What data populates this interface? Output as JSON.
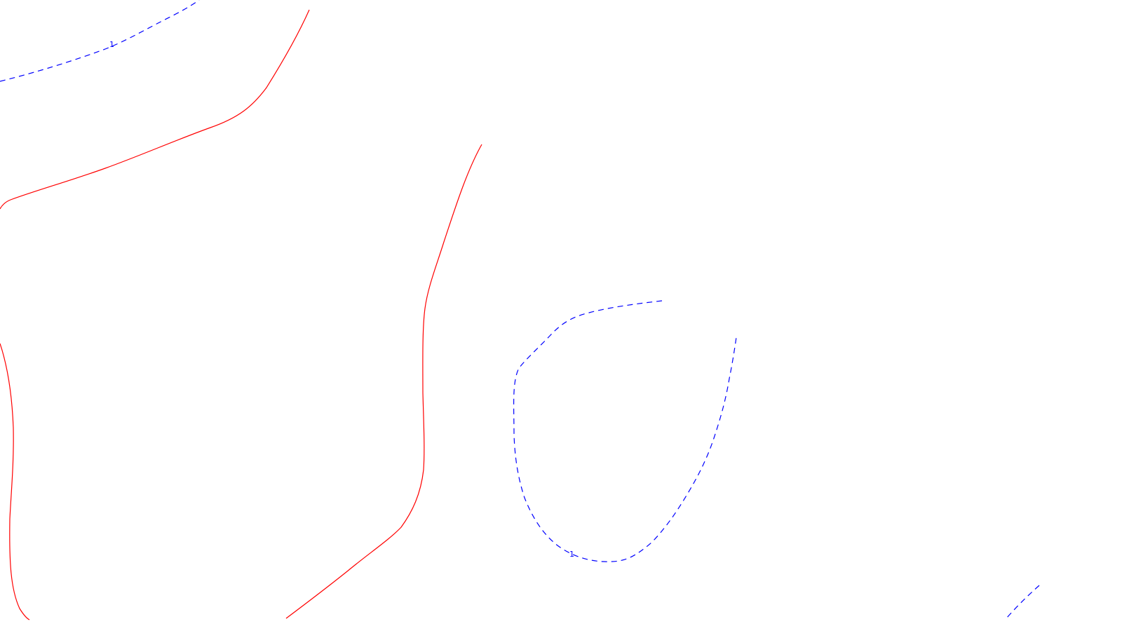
{
  "map": {
    "colors": {
      "background": "#ffffff",
      "solid_contour": "#ff0000",
      "dashed_contour": "#0000ff"
    },
    "contours": [
      {
        "id": "red-upper",
        "style": "solid",
        "color": "#ff0000"
      },
      {
        "id": "red-left",
        "style": "solid",
        "color": "#ff0000"
      },
      {
        "id": "red-middle",
        "style": "solid",
        "color": "#ff0000"
      },
      {
        "id": "blue-top-left",
        "style": "dashed",
        "color": "#0000ff",
        "label": "1"
      },
      {
        "id": "blue-loop",
        "style": "dashed",
        "color": "#0000ff",
        "label": "1"
      },
      {
        "id": "blue-bottom-right",
        "style": "dashed",
        "color": "#0000ff"
      }
    ]
  }
}
